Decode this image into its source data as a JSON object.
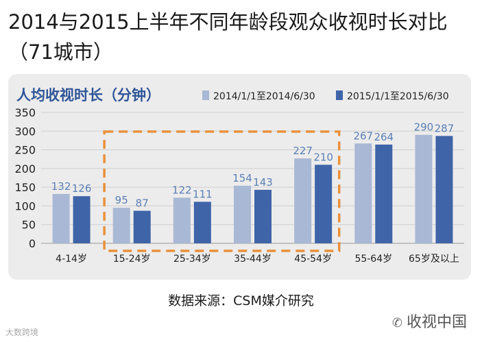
{
  "page": {
    "title": "2014与2015上半年不同年龄段观众收视时长对比（71城市）",
    "source": "数据来源：CSM媒介研究",
    "watermark_right": "收视中国",
    "watermark_left": "大数跨境"
  },
  "chart_data": {
    "type": "bar",
    "title": "人均收视时长（分钟）",
    "categories": [
      "4-14岁",
      "15-24岁",
      "25-34岁",
      "35-44岁",
      "45-54岁",
      "55-64岁",
      "65岁及以上"
    ],
    "series": [
      {
        "name": "2014/1/1至2014/6/30",
        "values": [
          132,
          95,
          122,
          154,
          227,
          267,
          290
        ],
        "color": "#a9b8d4"
      },
      {
        "name": "2015/1/1至2015/6/30",
        "values": [
          126,
          87,
          111,
          143,
          210,
          264,
          287
        ],
        "color": "#3f64a8"
      }
    ],
    "ylim": [
      0,
      350
    ],
    "yticks": [
      0,
      50,
      100,
      150,
      200,
      250,
      300,
      350
    ],
    "grid": true,
    "legend_position": "top-right",
    "highlight": {
      "from_category": "15-24岁",
      "to_category": "45-54岁",
      "color": "#e8913b",
      "style": "dashed"
    },
    "label_color": "#5a7fb5"
  }
}
